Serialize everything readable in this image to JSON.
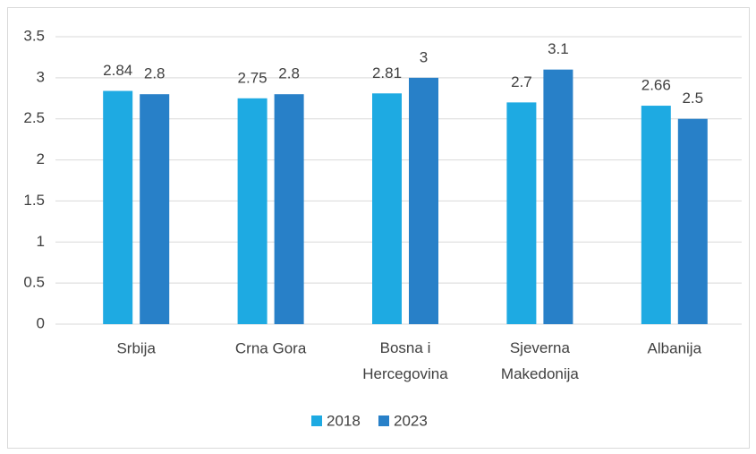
{
  "chart_data": {
    "type": "bar",
    "categories": [
      "Srbija",
      "Crna Gora",
      "Bosna i Hercegovina",
      "Sjeverna Makedonija",
      "Albanija"
    ],
    "series": [
      {
        "name": "2018",
        "color": "#1eaae2",
        "values": [
          2.84,
          2.75,
          2.81,
          2.7,
          2.66
        ]
      },
      {
        "name": "2023",
        "color": "#2880c8",
        "values": [
          2.8,
          2.8,
          3,
          3.1,
          2.5
        ]
      }
    ],
    "ylim": [
      0,
      3.5
    ],
    "yticks": [
      0,
      0.5,
      1,
      1.5,
      2,
      2.5,
      3,
      3.5
    ],
    "grid": true,
    "legend": "bottom"
  }
}
